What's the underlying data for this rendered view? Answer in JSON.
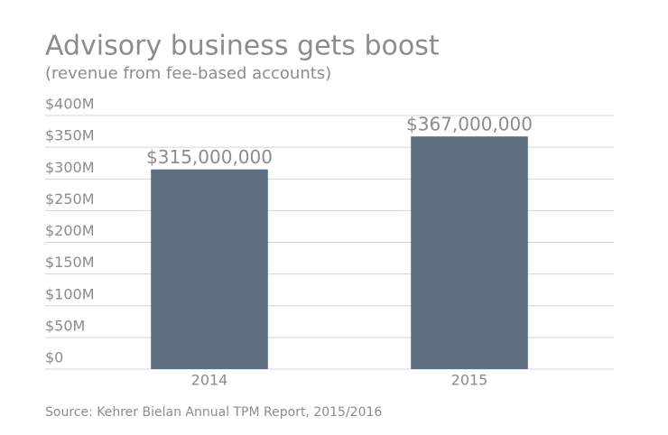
{
  "chart_data": {
    "type": "bar",
    "title": "Advisory business gets boost",
    "subtitle": "(revenue from fee-based accounts)",
    "source": "Source: Kehrer Bielan Annual TPM Report, 2015/2016",
    "categories": [
      "2014",
      "2015"
    ],
    "values": [
      315000000,
      367000000
    ],
    "value_labels": [
      "$315,000,000",
      "$367,000,000"
    ],
    "color": "#5f6e80",
    "ylim": [
      0,
      400000000
    ],
    "yticks": [
      {
        "value": 0,
        "label": "$0"
      },
      {
        "value": 50000000,
        "label": "$50M"
      },
      {
        "value": 100000000,
        "label": "$100M"
      },
      {
        "value": 150000000,
        "label": "$150M"
      },
      {
        "value": 200000000,
        "label": "$200M"
      },
      {
        "value": 250000000,
        "label": "$250M"
      },
      {
        "value": 300000000,
        "label": "$300M"
      },
      {
        "value": 350000000,
        "label": "$350M"
      },
      {
        "value": 400000000,
        "label": "$400M"
      }
    ],
    "grid": true
  }
}
